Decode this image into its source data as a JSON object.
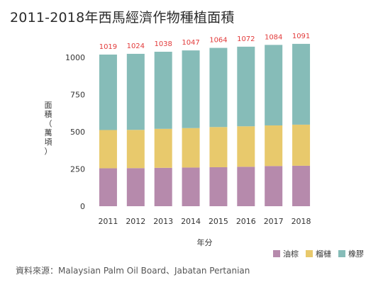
{
  "title": "2011-2018年西馬經濟作物種植面積",
  "source": "資料來源：Malaysian Palm Oil Board、Jabatan Pertanian",
  "colors": {
    "palm_oil": "#b68aac",
    "rubber": "#86bcb8",
    "durian": "#e8c96c",
    "total_label": "#e23a3a"
  },
  "chart_data": {
    "type": "bar",
    "stacked": true,
    "title": "2011-2018年西馬經濟作物種植面積",
    "xlabel": "年分",
    "ylabel": "面積（萬頃）",
    "ylim": [
      0,
      1100
    ],
    "yticks": [
      0,
      250,
      500,
      750,
      1000
    ],
    "grid": false,
    "legend_position": "bottom-right",
    "categories": [
      "2011",
      "2012",
      "2013",
      "2014",
      "2015",
      "2016",
      "2017",
      "2018"
    ],
    "totals": [
      1019,
      1024,
      1038,
      1047,
      1064,
      1072,
      1084,
      1091
    ],
    "series": [
      {
        "name": "油棕",
        "color": "#b68aac",
        "values": [
          255,
          256,
          258,
          260,
          262,
          265,
          270,
          272
        ]
      },
      {
        "name": "榴槤",
        "color": "#e8c96c",
        "values": [
          257,
          257,
          262,
          265,
          270,
          272,
          273,
          276
        ]
      },
      {
        "name": "橡膠",
        "color": "#86bcb8",
        "values": [
          507,
          511,
          518,
          522,
          532,
          535,
          541,
          543
        ]
      }
    ]
  }
}
